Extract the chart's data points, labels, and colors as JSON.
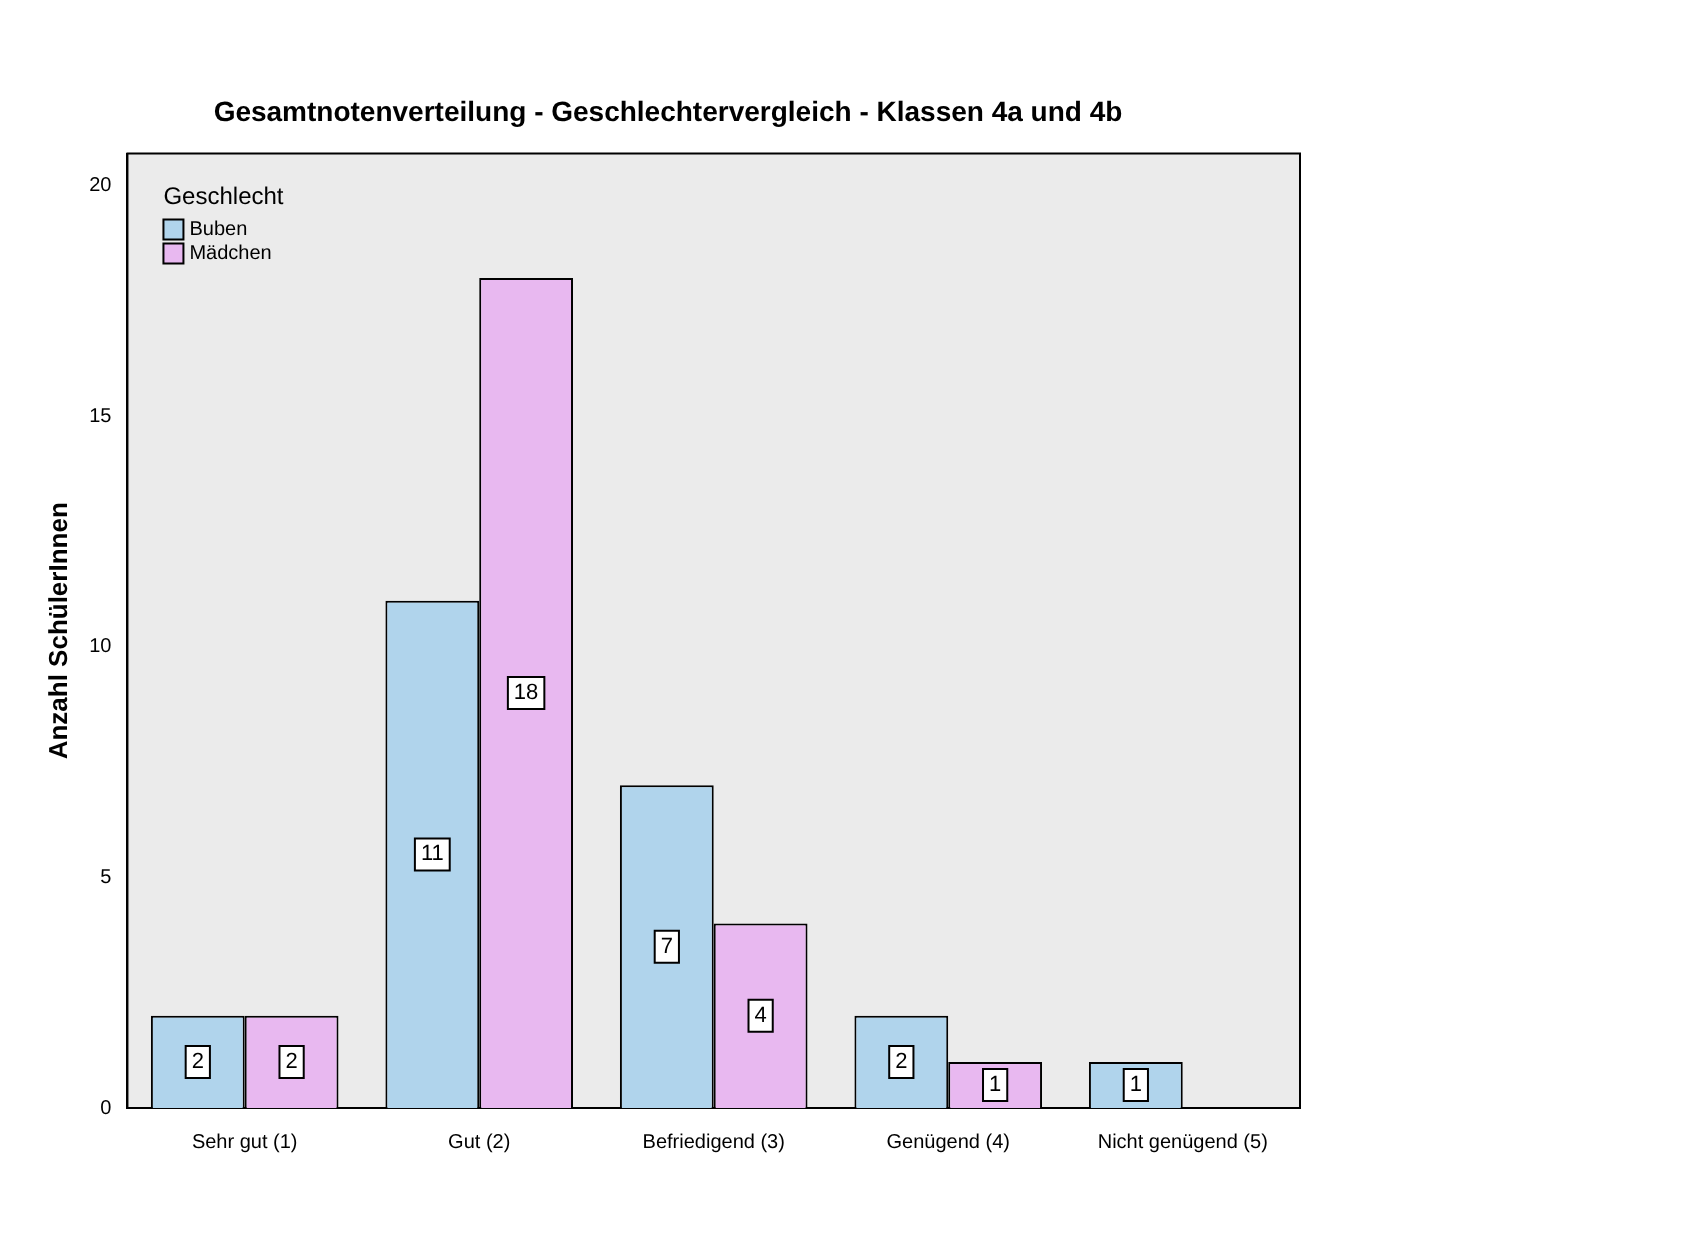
{
  "chart_data": {
    "type": "bar",
    "title": "Gesamtnotenverteilung - Geschlechtervergleich - Klassen 4a und 4b",
    "ylabel": "Anzahl SchülerInnen",
    "legend_title": "Geschlecht",
    "categories": [
      "Sehr gut (1)",
      "Gut (2)",
      "Befriedigend (3)",
      "Genügend (4)",
      "Nicht genügend (5)"
    ],
    "series": [
      {
        "name": "Buben",
        "color": "#b0d4ec",
        "values": [
          2,
          11,
          7,
          2,
          1
        ],
        "value_labels": [
          "2",
          "11",
          "7",
          "2",
          "1"
        ]
      },
      {
        "name": "Mädchen",
        "color": "#e8b8f0",
        "values": [
          2,
          18,
          4,
          1,
          0
        ],
        "value_labels": [
          "2",
          "18",
          "4",
          "1",
          null
        ]
      }
    ],
    "ylim": [
      0,
      20.7
    ],
    "yticks": [
      0,
      5,
      10,
      15,
      20
    ],
    "grid": false,
    "legend": "top left"
  }
}
